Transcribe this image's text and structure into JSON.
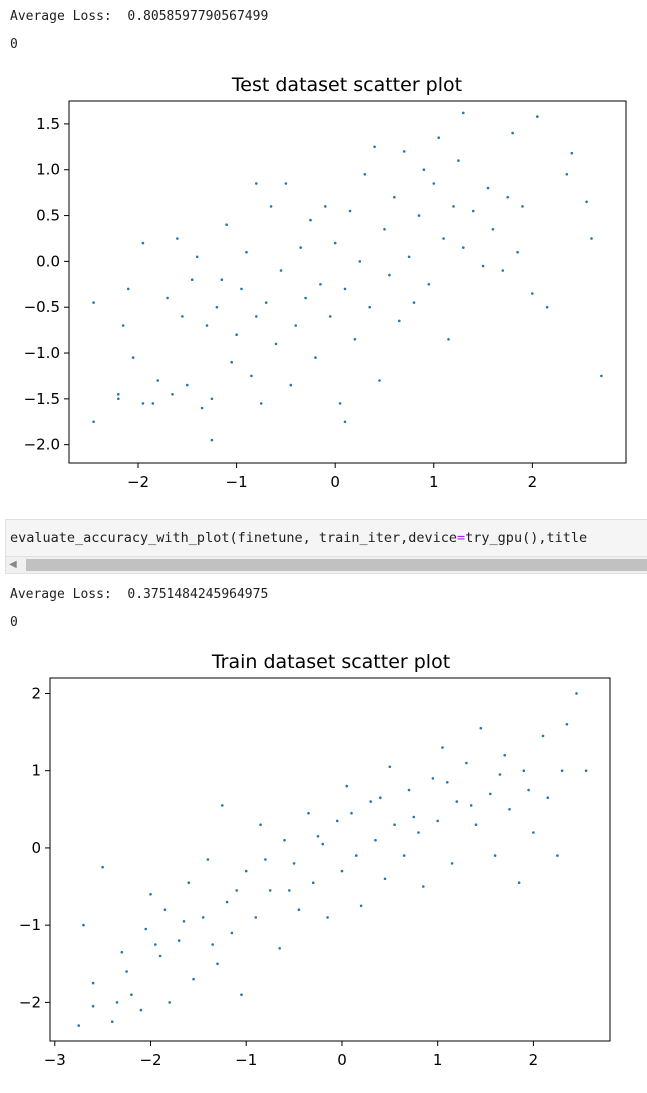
{
  "cell1": {
    "avg_loss_text": "Average Loss:  0.8058597790567499",
    "zero_text": "0"
  },
  "code_cell": {
    "code_prefix": "evaluate_accuracy_with_plot(finetune, train_iter,device",
    "code_eq": "=",
    "code_suffix": "try_gpu(),title",
    "scroll_left_arrow": "◀"
  },
  "cell2": {
    "avg_loss_text": "Average Loss:  0.3751484245964975",
    "zero_text": "0"
  },
  "colors": {
    "point": "#1f77b4",
    "axis": "#000000"
  },
  "chart_data": [
    {
      "type": "scatter",
      "title": "Test dataset scatter plot",
      "xlabel": "",
      "ylabel": "",
      "xlim": [
        -2.7,
        2.95
      ],
      "ylim": [
        -2.2,
        1.75
      ],
      "xticks": [
        -2,
        -1,
        0,
        1,
        2
      ],
      "xtick_labels": [
        "−2",
        "−1",
        "0",
        "1",
        "2"
      ],
      "yticks": [
        -2.0,
        -1.5,
        -1.0,
        -0.5,
        0.0,
        0.5,
        1.0,
        1.5
      ],
      "ytick_labels": [
        "−2.0",
        "−1.5",
        "−1.0",
        "−0.5",
        "0.0",
        "0.5",
        "1.0",
        "1.5"
      ],
      "grid": false,
      "series": [
        {
          "points": [
            [
              -2.45,
              -1.75
            ],
            [
              -2.45,
              -0.45
            ],
            [
              -2.2,
              -1.5
            ],
            [
              -2.2,
              -1.45
            ],
            [
              -2.15,
              -0.7
            ],
            [
              -2.1,
              -0.3
            ],
            [
              -2.05,
              -1.05
            ],
            [
              -1.95,
              0.2
            ],
            [
              -1.95,
              -1.55
            ],
            [
              -1.85,
              -1.55
            ],
            [
              -1.8,
              -1.3
            ],
            [
              -1.7,
              -0.4
            ],
            [
              -1.65,
              -1.45
            ],
            [
              -1.6,
              0.25
            ],
            [
              -1.55,
              -0.6
            ],
            [
              -1.5,
              -1.35
            ],
            [
              -1.45,
              -0.2
            ],
            [
              -1.4,
              0.05
            ],
            [
              -1.35,
              -1.6
            ],
            [
              -1.3,
              -0.7
            ],
            [
              -1.25,
              -1.95
            ],
            [
              -1.25,
              -1.5
            ],
            [
              -1.2,
              -0.5
            ],
            [
              -1.15,
              -0.2
            ],
            [
              -1.1,
              0.4
            ],
            [
              -1.05,
              -1.1
            ],
            [
              -1.0,
              -0.8
            ],
            [
              -0.95,
              -0.3
            ],
            [
              -0.9,
              0.1
            ],
            [
              -0.85,
              -1.25
            ],
            [
              -0.8,
              -0.6
            ],
            [
              -0.8,
              0.85
            ],
            [
              -0.75,
              -1.55
            ],
            [
              -0.7,
              -0.45
            ],
            [
              -0.65,
              0.6
            ],
            [
              -0.6,
              -0.9
            ],
            [
              -0.55,
              -0.1
            ],
            [
              -0.5,
              0.85
            ],
            [
              -0.45,
              -1.35
            ],
            [
              -0.4,
              -0.7
            ],
            [
              -0.35,
              0.15
            ],
            [
              -0.3,
              -0.4
            ],
            [
              -0.25,
              0.45
            ],
            [
              -0.2,
              -1.05
            ],
            [
              -0.15,
              -0.25
            ],
            [
              -0.1,
              0.6
            ],
            [
              -0.05,
              -0.6
            ],
            [
              0.0,
              0.2
            ],
            [
              0.05,
              -1.55
            ],
            [
              0.1,
              -1.75
            ],
            [
              0.1,
              -0.3
            ],
            [
              0.15,
              0.55
            ],
            [
              0.2,
              -0.85
            ],
            [
              0.25,
              0.0
            ],
            [
              0.3,
              0.95
            ],
            [
              0.35,
              -0.5
            ],
            [
              0.4,
              1.25
            ],
            [
              0.45,
              -1.3
            ],
            [
              0.5,
              0.35
            ],
            [
              0.55,
              -0.15
            ],
            [
              0.6,
              0.7
            ],
            [
              0.65,
              -0.65
            ],
            [
              0.7,
              1.2
            ],
            [
              0.75,
              0.05
            ],
            [
              0.8,
              -0.45
            ],
            [
              0.85,
              0.5
            ],
            [
              0.9,
              1.0
            ],
            [
              0.95,
              -0.25
            ],
            [
              1.0,
              0.85
            ],
            [
              1.05,
              1.35
            ],
            [
              1.1,
              0.25
            ],
            [
              1.15,
              -0.85
            ],
            [
              1.2,
              0.6
            ],
            [
              1.25,
              1.1
            ],
            [
              1.3,
              1.62
            ],
            [
              1.3,
              0.15
            ],
            [
              1.4,
              0.55
            ],
            [
              1.5,
              -0.05
            ],
            [
              1.55,
              0.8
            ],
            [
              1.6,
              0.35
            ],
            [
              1.7,
              -0.1
            ],
            [
              1.75,
              0.7
            ],
            [
              1.8,
              1.4
            ],
            [
              1.85,
              0.1
            ],
            [
              1.9,
              0.6
            ],
            [
              2.0,
              -0.35
            ],
            [
              2.05,
              1.58
            ],
            [
              2.15,
              -0.5
            ],
            [
              2.35,
              0.95
            ],
            [
              2.4,
              1.18
            ],
            [
              2.55,
              0.65
            ],
            [
              2.6,
              0.25
            ],
            [
              2.7,
              -1.25
            ]
          ]
        }
      ]
    },
    {
      "type": "scatter",
      "title": "Train dataset scatter plot",
      "xlabel": "",
      "ylabel": "",
      "xlim": [
        -3.05,
        2.8
      ],
      "ylim": [
        -2.5,
        2.2
      ],
      "xticks": [
        -3,
        -2,
        -1,
        0,
        1,
        2
      ],
      "xtick_labels": [
        "−3",
        "−2",
        "−1",
        "0",
        "1",
        "2"
      ],
      "yticks": [
        -2,
        -1,
        0,
        1,
        2
      ],
      "ytick_labels": [
        "−2",
        "−1",
        "0",
        "1",
        "2"
      ],
      "grid": false,
      "series": [
        {
          "points": [
            [
              -2.75,
              -2.3
            ],
            [
              -2.7,
              -1.0
            ],
            [
              -2.6,
              -1.75
            ],
            [
              -2.5,
              -0.25
            ],
            [
              -2.4,
              -2.25
            ],
            [
              -2.35,
              -2.0
            ],
            [
              -2.25,
              -1.6
            ],
            [
              -2.2,
              -1.9
            ],
            [
              -2.1,
              -2.1
            ],
            [
              -2.05,
              -1.05
            ],
            [
              -2.0,
              -0.6
            ],
            [
              -1.9,
              -1.4
            ],
            [
              -1.85,
              -0.8
            ],
            [
              -1.8,
              -2.0
            ],
            [
              -1.7,
              -1.2
            ],
            [
              -1.6,
              -0.45
            ],
            [
              -1.55,
              -1.7
            ],
            [
              -1.45,
              -0.9
            ],
            [
              -1.4,
              -0.15
            ],
            [
              -1.3,
              -1.5
            ],
            [
              -1.25,
              0.55
            ],
            [
              -1.2,
              -0.7
            ],
            [
              -1.15,
              -1.1
            ],
            [
              -1.05,
              -1.9
            ],
            [
              -1.0,
              -0.3
            ],
            [
              -0.9,
              -0.9
            ],
            [
              -0.85,
              0.3
            ],
            [
              -0.75,
              -0.55
            ],
            [
              -0.65,
              -1.3
            ],
            [
              -0.6,
              0.1
            ],
            [
              -0.5,
              -0.2
            ],
            [
              -0.45,
              -0.8
            ],
            [
              -0.35,
              0.45
            ],
            [
              -0.3,
              -0.45
            ],
            [
              -0.2,
              0.05
            ],
            [
              -0.15,
              -0.9
            ],
            [
              -0.05,
              0.35
            ],
            [
              0.0,
              -0.3
            ],
            [
              0.05,
              0.8
            ],
            [
              0.15,
              -0.1
            ],
            [
              0.2,
              -0.75
            ],
            [
              0.3,
              0.6
            ],
            [
              0.35,
              0.1
            ],
            [
              0.45,
              -0.4
            ],
            [
              0.5,
              1.05
            ],
            [
              0.55,
              0.3
            ],
            [
              0.65,
              -0.1
            ],
            [
              0.7,
              0.75
            ],
            [
              0.8,
              0.2
            ],
            [
              0.85,
              -0.5
            ],
            [
              0.95,
              0.9
            ],
            [
              1.0,
              0.35
            ],
            [
              1.05,
              1.3
            ],
            [
              1.15,
              -0.2
            ],
            [
              1.2,
              0.6
            ],
            [
              1.3,
              1.1
            ],
            [
              1.4,
              0.3
            ],
            [
              1.45,
              1.55
            ],
            [
              1.55,
              0.7
            ],
            [
              1.6,
              -0.1
            ],
            [
              1.7,
              1.2
            ],
            [
              1.75,
              0.5
            ],
            [
              1.85,
              -0.45
            ],
            [
              1.9,
              1.0
            ],
            [
              2.0,
              0.2
            ],
            [
              2.1,
              1.45
            ],
            [
              2.15,
              0.65
            ],
            [
              2.25,
              -0.1
            ],
            [
              2.3,
              1.0
            ],
            [
              2.35,
              1.6
            ],
            [
              2.45,
              2.0
            ],
            [
              2.55,
              1.0
            ],
            [
              -2.6,
              -2.05
            ],
            [
              -2.3,
              -1.35
            ],
            [
              -1.95,
              -1.25
            ],
            [
              -1.65,
              -0.95
            ],
            [
              -1.35,
              -1.25
            ],
            [
              -1.1,
              -0.55
            ],
            [
              -0.8,
              -0.15
            ],
            [
              -0.55,
              -0.55
            ],
            [
              -0.25,
              0.15
            ],
            [
              0.1,
              0.45
            ],
            [
              0.4,
              0.65
            ],
            [
              0.75,
              0.4
            ],
            [
              1.1,
              0.85
            ],
            [
              1.35,
              0.55
            ],
            [
              1.65,
              0.95
            ],
            [
              1.95,
              0.75
            ]
          ]
        }
      ]
    }
  ]
}
